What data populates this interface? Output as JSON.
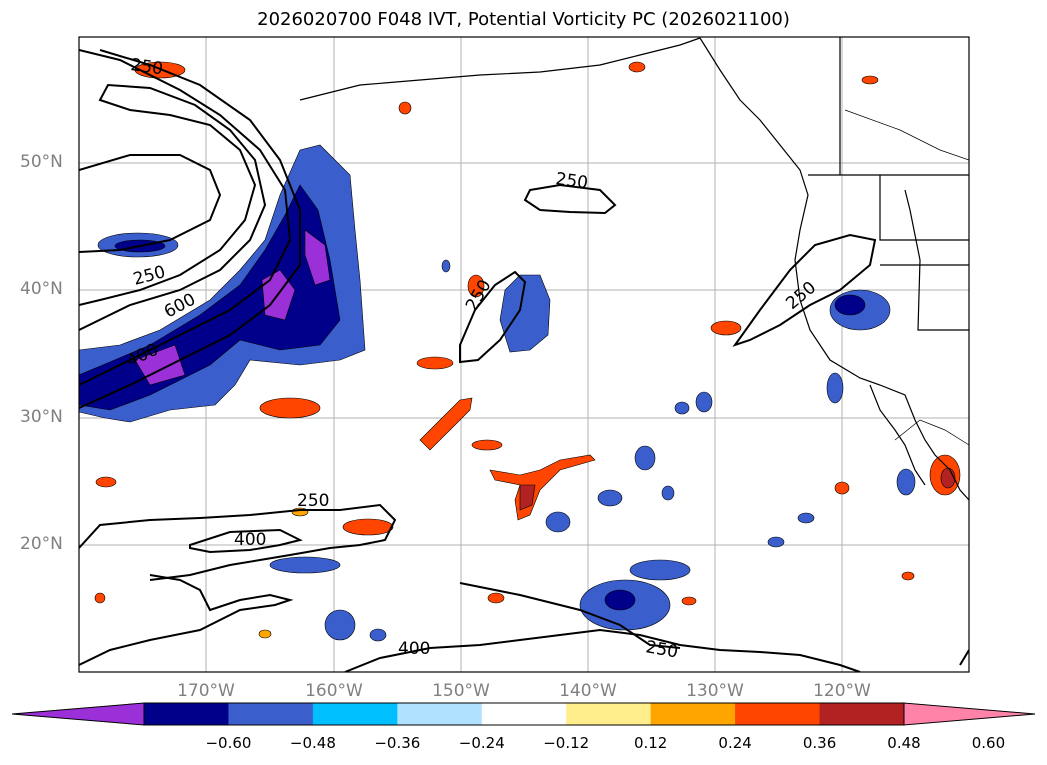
{
  "title": "2026020700 F048 IVT, Potential Vorticity PC (2026021100)",
  "map": {
    "lat_labels": [
      "50°N",
      "40°N",
      "30°N",
      "20°N"
    ],
    "lon_labels": [
      "170°W",
      "160°W",
      "150°W",
      "140°W",
      "130°W",
      "120°W"
    ],
    "contour_labels": [
      "250",
      "250",
      "600",
      "400",
      "250",
      "250",
      "250",
      "250",
      "400",
      "400",
      "250"
    ]
  },
  "colorbar": {
    "ticks": [
      "−0.60",
      "−0.48",
      "−0.36",
      "−0.24",
      "−0.12",
      "0.12",
      "0.24",
      "0.36",
      "0.48",
      "0.60"
    ],
    "colors": [
      "#9b30d9",
      "#00008b",
      "#3a5fcd",
      "#00bfff",
      "#b0e2ff",
      "#ffffff",
      "#ffec8b",
      "#ffa500",
      "#ff4500",
      "#b22222",
      "#ff83a8"
    ]
  }
}
